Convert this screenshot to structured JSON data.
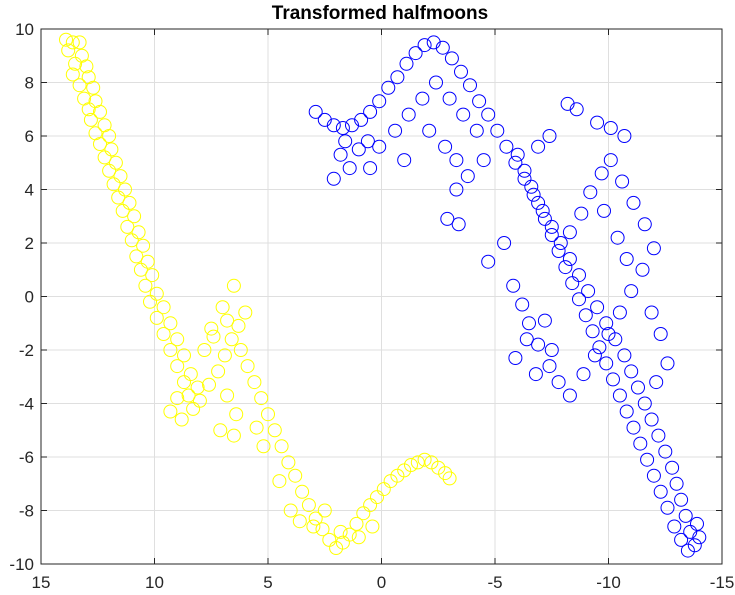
{
  "chart_data": {
    "type": "scatter",
    "title": "Transformed halfmoons",
    "xlabel": "",
    "ylabel": "",
    "xlim": [
      15,
      -15
    ],
    "ylim": [
      -10,
      10
    ],
    "x_reversed": true,
    "x_ticks": [
      15,
      10,
      5,
      0,
      -5,
      -10,
      -15
    ],
    "x_tick_labels": [
      "15",
      "10",
      "5",
      "0",
      "-5",
      "-10",
      "-15"
    ],
    "y_ticks": [
      10,
      8,
      6,
      4,
      2,
      0,
      -2,
      -4,
      -6,
      -8,
      -10
    ],
    "y_tick_labels": [
      "10",
      "8",
      "6",
      "4",
      "2",
      "0",
      "-2",
      "-4",
      "-6",
      "-8",
      "-10"
    ],
    "grid": true,
    "marker": "open-circle",
    "series": [
      {
        "color": "#ffff00",
        "points": [
          [
            13.9,
            9.6
          ],
          [
            13.6,
            9.5
          ],
          [
            13.3,
            9.5
          ],
          [
            13.8,
            9.2
          ],
          [
            13.2,
            9.0
          ],
          [
            13.5,
            8.7
          ],
          [
            13.0,
            8.6
          ],
          [
            13.6,
            8.3
          ],
          [
            12.9,
            8.2
          ],
          [
            13.3,
            7.9
          ],
          [
            12.7,
            7.8
          ],
          [
            13.1,
            7.4
          ],
          [
            12.6,
            7.3
          ],
          [
            12.9,
            7.0
          ],
          [
            12.4,
            6.9
          ],
          [
            12.8,
            6.6
          ],
          [
            12.2,
            6.4
          ],
          [
            12.6,
            6.1
          ],
          [
            12.0,
            6.0
          ],
          [
            12.4,
            5.7
          ],
          [
            11.9,
            5.5
          ],
          [
            12.2,
            5.2
          ],
          [
            11.7,
            5.0
          ],
          [
            12.0,
            4.7
          ],
          [
            11.5,
            4.5
          ],
          [
            11.8,
            4.2
          ],
          [
            11.3,
            4.0
          ],
          [
            11.6,
            3.7
          ],
          [
            11.1,
            3.5
          ],
          [
            11.4,
            3.2
          ],
          [
            10.9,
            3.0
          ],
          [
            11.2,
            2.6
          ],
          [
            10.7,
            2.4
          ],
          [
            11.0,
            2.1
          ],
          [
            10.5,
            1.9
          ],
          [
            10.8,
            1.5
          ],
          [
            10.3,
            1.3
          ],
          [
            10.6,
            1.0
          ],
          [
            10.1,
            0.8
          ],
          [
            10.4,
            0.4
          ],
          [
            9.9,
            0.1
          ],
          [
            10.2,
            -0.2
          ],
          [
            9.6,
            -0.4
          ],
          [
            9.9,
            -0.8
          ],
          [
            9.3,
            -1.0
          ],
          [
            9.6,
            -1.4
          ],
          [
            9.0,
            -1.6
          ],
          [
            9.3,
            -2.0
          ],
          [
            8.7,
            -2.2
          ],
          [
            9.0,
            -2.6
          ],
          [
            8.4,
            -2.9
          ],
          [
            8.7,
            -3.2
          ],
          [
            8.1,
            -3.4
          ],
          [
            8.5,
            -3.7
          ],
          [
            8.0,
            -3.9
          ],
          [
            8.3,
            -4.2
          ],
          [
            9.0,
            -3.8
          ],
          [
            9.3,
            -4.3
          ],
          [
            8.8,
            -4.6
          ],
          [
            7.6,
            -3.3
          ],
          [
            7.2,
            -2.8
          ],
          [
            6.9,
            -2.2
          ],
          [
            6.6,
            -1.6
          ],
          [
            6.3,
            -1.1
          ],
          [
            6.0,
            -0.6
          ],
          [
            6.5,
            0.4
          ],
          [
            7.0,
            -0.4
          ],
          [
            7.5,
            -1.2
          ],
          [
            7.8,
            -2.0
          ],
          [
            7.4,
            -1.5
          ],
          [
            6.8,
            -0.9
          ],
          [
            6.2,
            -2.0
          ],
          [
            5.9,
            -2.6
          ],
          [
            5.6,
            -3.2
          ],
          [
            5.3,
            -3.8
          ],
          [
            5.0,
            -4.4
          ],
          [
            4.7,
            -5.0
          ],
          [
            4.4,
            -5.6
          ],
          [
            4.1,
            -6.2
          ],
          [
            3.8,
            -6.7
          ],
          [
            3.5,
            -7.3
          ],
          [
            3.2,
            -7.8
          ],
          [
            2.9,
            -8.3
          ],
          [
            2.6,
            -8.7
          ],
          [
            2.3,
            -9.1
          ],
          [
            2.0,
            -9.4
          ],
          [
            1.7,
            -9.2
          ],
          [
            1.4,
            -8.9
          ],
          [
            1.1,
            -8.5
          ],
          [
            0.8,
            -8.1
          ],
          [
            0.5,
            -7.8
          ],
          [
            0.2,
            -7.5
          ],
          [
            -0.1,
            -7.2
          ],
          [
            -0.4,
            -6.9
          ],
          [
            -0.7,
            -6.7
          ],
          [
            -1.0,
            -6.5
          ],
          [
            -1.3,
            -6.3
          ],
          [
            -1.6,
            -6.2
          ],
          [
            -1.9,
            -6.1
          ],
          [
            -2.2,
            -6.2
          ],
          [
            -2.5,
            -6.4
          ],
          [
            -2.8,
            -6.6
          ],
          [
            -3.0,
            -6.8
          ],
          [
            2.5,
            -8.0
          ],
          [
            3.0,
            -8.6
          ],
          [
            1.8,
            -8.8
          ],
          [
            1.0,
            -9.0
          ],
          [
            0.4,
            -8.6
          ],
          [
            4.0,
            -8.0
          ],
          [
            3.6,
            -8.4
          ],
          [
            4.5,
            -6.9
          ],
          [
            5.2,
            -5.6
          ],
          [
            5.5,
            -4.9
          ],
          [
            6.4,
            -4.4
          ],
          [
            6.8,
            -3.7
          ],
          [
            7.1,
            -5.0
          ],
          [
            6.5,
            -5.2
          ]
        ]
      },
      {
        "color": "#0000ff",
        "points": [
          [
            2.9,
            6.9
          ],
          [
            2.5,
            6.6
          ],
          [
            2.1,
            6.4
          ],
          [
            1.7,
            6.3
          ],
          [
            1.3,
            6.4
          ],
          [
            0.9,
            6.6
          ],
          [
            0.5,
            6.9
          ],
          [
            0.1,
            7.3
          ],
          [
            -0.3,
            7.8
          ],
          [
            -0.7,
            8.2
          ],
          [
            -1.1,
            8.7
          ],
          [
            -1.5,
            9.1
          ],
          [
            -1.9,
            9.4
          ],
          [
            -2.3,
            9.5
          ],
          [
            -2.7,
            9.3
          ],
          [
            -3.1,
            8.9
          ],
          [
            -3.5,
            8.4
          ],
          [
            -3.9,
            7.9
          ],
          [
            -4.3,
            7.3
          ],
          [
            -4.7,
            6.8
          ],
          [
            -5.1,
            6.2
          ],
          [
            -5.5,
            5.6
          ],
          [
            -5.9,
            5.0
          ],
          [
            -6.3,
            4.4
          ],
          [
            -6.7,
            3.8
          ],
          [
            -7.1,
            3.2
          ],
          [
            -7.5,
            2.6
          ],
          [
            -7.9,
            2.0
          ],
          [
            -8.3,
            1.4
          ],
          [
            -8.7,
            0.8
          ],
          [
            -9.1,
            0.2
          ],
          [
            -9.5,
            -0.4
          ],
          [
            -9.9,
            -1.0
          ],
          [
            -10.3,
            -1.6
          ],
          [
            -10.7,
            -2.2
          ],
          [
            -11.0,
            -2.8
          ],
          [
            -11.3,
            -3.4
          ],
          [
            -11.6,
            -4.0
          ],
          [
            -11.9,
            -4.6
          ],
          [
            -12.2,
            -5.2
          ],
          [
            -12.5,
            -5.8
          ],
          [
            -12.8,
            -6.4
          ],
          [
            -13.0,
            -7.0
          ],
          [
            -13.2,
            -7.6
          ],
          [
            -13.4,
            -8.2
          ],
          [
            -13.6,
            -8.8
          ],
          [
            -13.8,
            -9.3
          ],
          [
            -13.5,
            -9.5
          ],
          [
            -13.2,
            -9.1
          ],
          [
            -14.0,
            -9.0
          ],
          [
            -13.9,
            -8.5
          ],
          [
            -12.9,
            -8.6
          ],
          [
            -12.6,
            -7.9
          ],
          [
            -12.3,
            -7.3
          ],
          [
            -12.0,
            -6.7
          ],
          [
            -11.7,
            -6.1
          ],
          [
            -11.4,
            -5.5
          ],
          [
            -11.1,
            -4.9
          ],
          [
            -10.8,
            -4.3
          ],
          [
            -10.5,
            -3.7
          ],
          [
            -10.2,
            -3.1
          ],
          [
            -9.9,
            -2.5
          ],
          [
            -9.6,
            -1.9
          ],
          [
            -9.3,
            -1.3
          ],
          [
            -9.0,
            -0.7
          ],
          [
            -8.7,
            -0.1
          ],
          [
            -8.4,
            0.5
          ],
          [
            -8.1,
            1.1
          ],
          [
            -7.8,
            1.7
          ],
          [
            -7.5,
            2.3
          ],
          [
            -7.2,
            2.9
          ],
          [
            -6.9,
            3.5
          ],
          [
            -6.6,
            4.1
          ],
          [
            -6.3,
            4.7
          ],
          [
            -6.0,
            5.3
          ],
          [
            -8.2,
            7.2
          ],
          [
            -8.6,
            7.0
          ],
          [
            -9.5,
            6.5
          ],
          [
            -10.1,
            6.3
          ],
          [
            -10.7,
            6.0
          ],
          [
            -7.4,
            6.0
          ],
          [
            -6.9,
            5.6
          ],
          [
            -5.4,
            2.0
          ],
          [
            -4.7,
            1.3
          ],
          [
            -5.8,
            0.4
          ],
          [
            -6.2,
            -0.3
          ],
          [
            -6.5,
            -1.0
          ],
          [
            -6.9,
            -1.8
          ],
          [
            -7.4,
            -2.6
          ],
          [
            -7.8,
            -3.2
          ],
          [
            -8.3,
            -3.7
          ],
          [
            -8.9,
            -2.9
          ],
          [
            -9.4,
            -2.2
          ],
          [
            -10.0,
            -1.4
          ],
          [
            -10.5,
            -0.6
          ],
          [
            -11.0,
            0.2
          ],
          [
            -11.5,
            1.0
          ],
          [
            -12.0,
            1.8
          ],
          [
            -11.6,
            2.7
          ],
          [
            -11.1,
            3.5
          ],
          [
            -10.6,
            4.3
          ],
          [
            -10.1,
            5.1
          ],
          [
            -9.7,
            4.6
          ],
          [
            -9.2,
            3.9
          ],
          [
            -8.8,
            3.1
          ],
          [
            -8.3,
            2.4
          ],
          [
            -9.8,
            3.2
          ],
          [
            -10.4,
            2.2
          ],
          [
            -10.8,
            1.4
          ],
          [
            -11.9,
            -0.6
          ],
          [
            -12.3,
            -1.4
          ],
          [
            -12.6,
            -2.5
          ],
          [
            -12.1,
            -3.2
          ],
          [
            -7.2,
            -0.9
          ],
          [
            -6.4,
            -1.6
          ],
          [
            -5.9,
            -2.3
          ],
          [
            -6.8,
            -2.9
          ],
          [
            -7.5,
            -2.0
          ],
          [
            -4.5,
            5.1
          ],
          [
            -3.8,
            4.5
          ],
          [
            -3.3,
            4.0
          ],
          [
            -2.9,
            2.9
          ],
          [
            -3.4,
            2.7
          ],
          [
            1.8,
            5.3
          ],
          [
            1.4,
            4.8
          ],
          [
            1.0,
            5.5
          ],
          [
            0.5,
            4.8
          ],
          [
            0.1,
            5.6
          ],
          [
            -0.6,
            6.2
          ],
          [
            -1.2,
            6.8
          ],
          [
            -1.8,
            7.4
          ],
          [
            -2.4,
            8.0
          ],
          [
            -3.0,
            7.4
          ],
          [
            -3.6,
            6.8
          ],
          [
            -4.2,
            6.2
          ],
          [
            2.1,
            4.4
          ],
          [
            1.6,
            5.8
          ],
          [
            0.6,
            5.8
          ],
          [
            -1.0,
            5.1
          ],
          [
            -2.1,
            6.2
          ],
          [
            -2.8,
            5.6
          ],
          [
            -3.3,
            5.1
          ]
        ]
      }
    ]
  }
}
